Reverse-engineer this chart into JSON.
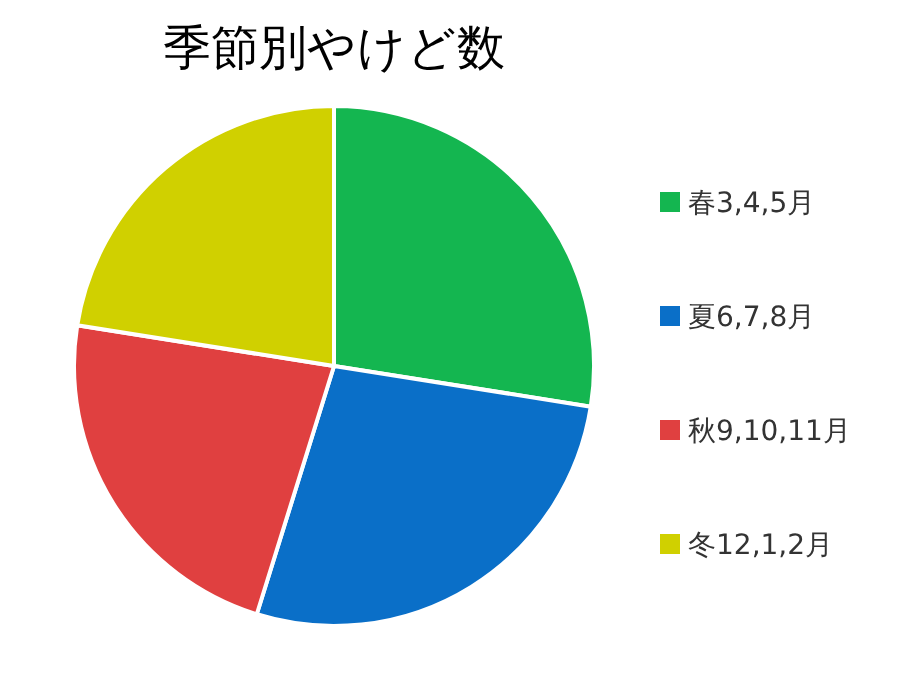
{
  "chart_data": {
    "type": "pie",
    "title": "季節別やけど数",
    "categories": [
      "春3,4,5月",
      "夏6,7,8月",
      "秋9,10,11月",
      "冬12,1,2月"
    ],
    "values": [
      27.5,
      27.3,
      22.7,
      22.5
    ],
    "colors": [
      "#14b650",
      "#0a6fc8",
      "#e04040",
      "#d0d000"
    ],
    "legend": "right"
  }
}
